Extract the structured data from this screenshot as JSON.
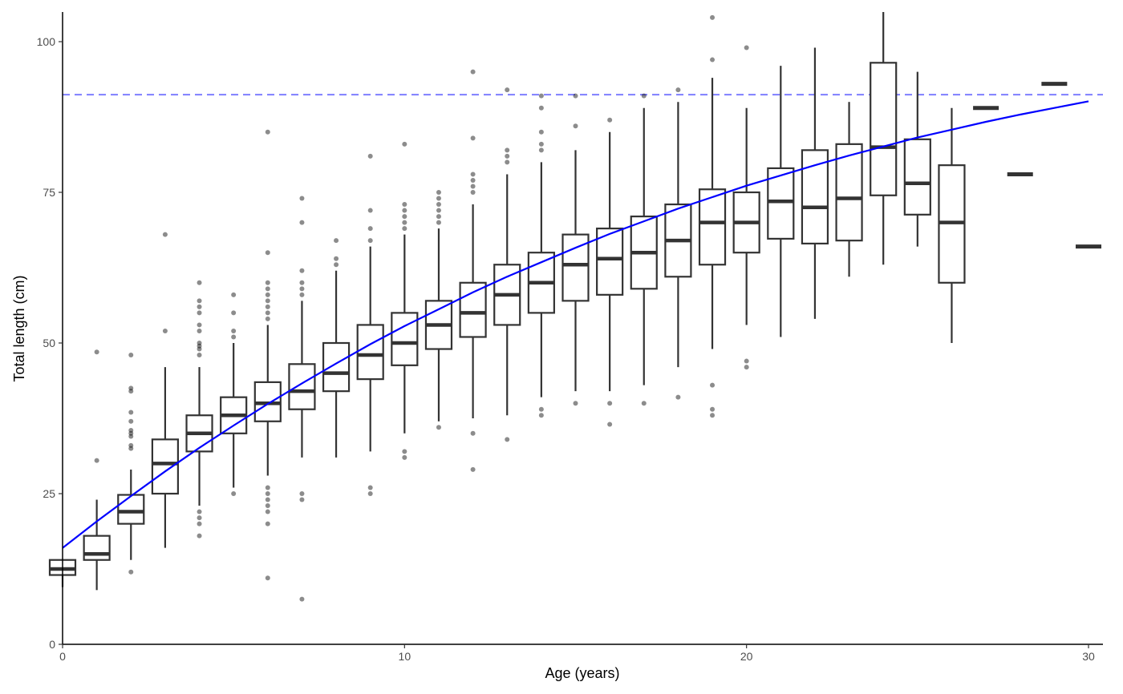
{
  "chart_data": {
    "type": "box",
    "xlabel": "Age (years)",
    "ylabel": "Total length (cm)",
    "xlim": [
      0,
      30
    ],
    "ylim": [
      0,
      105
    ],
    "x_ticks": [
      0,
      10,
      20,
      30
    ],
    "y_ticks": [
      0,
      25,
      50,
      75,
      100
    ],
    "grid": false,
    "reference_line": {
      "y": 91.2,
      "style": "dashed",
      "color": "#7f7fff"
    },
    "fit_curve": {
      "color": "#0000ff",
      "points": [
        [
          0,
          16.0
        ],
        [
          1,
          20.4
        ],
        [
          2,
          24.6
        ],
        [
          3,
          28.7
        ],
        [
          4,
          32.6
        ],
        [
          5,
          36.3
        ],
        [
          6,
          39.9
        ],
        [
          7,
          43.3
        ],
        [
          8,
          46.6
        ],
        [
          9,
          49.8
        ],
        [
          10,
          52.8
        ],
        [
          11,
          55.6
        ],
        [
          12,
          58.4
        ],
        [
          13,
          61.0
        ],
        [
          14,
          63.4
        ],
        [
          15,
          65.8
        ],
        [
          16,
          68.1
        ],
        [
          17,
          70.2
        ],
        [
          18,
          72.3
        ],
        [
          19,
          74.2
        ],
        [
          20,
          76.1
        ],
        [
          21,
          77.8
        ],
        [
          22,
          79.5
        ],
        [
          23,
          81.1
        ],
        [
          24,
          82.6
        ],
        [
          25,
          84.1
        ],
        [
          26,
          85.4
        ],
        [
          27,
          86.7
        ],
        [
          28,
          87.9
        ],
        [
          29,
          89.0
        ],
        [
          30,
          90.1
        ]
      ]
    },
    "boxes": [
      {
        "age": 0,
        "min": 9.5,
        "q1": 11.5,
        "median": 12.5,
        "q3": 14,
        "max": 14,
        "outliers": []
      },
      {
        "age": 1,
        "min": 9,
        "q1": 14,
        "median": 15,
        "q3": 18,
        "max": 24,
        "outliers": [
          30.5,
          48.5
        ]
      },
      {
        "age": 2,
        "min": 14,
        "q1": 20,
        "median": 22,
        "q3": 24.8,
        "max": 29,
        "outliers": [
          12,
          32.5,
          33,
          34.5,
          35,
          35.5,
          37,
          38.5,
          42,
          42.5,
          48
        ]
      },
      {
        "age": 3,
        "min": 16,
        "q1": 25,
        "median": 30,
        "q3": 34,
        "max": 46,
        "outliers": [
          52,
          68
        ]
      },
      {
        "age": 4,
        "min": 23,
        "q1": 32,
        "median": 35,
        "q3": 38,
        "max": 46,
        "outliers": [
          18,
          20,
          21,
          22,
          48,
          49,
          49.5,
          50,
          52,
          53,
          55,
          56,
          57,
          60
        ]
      },
      {
        "age": 5,
        "min": 26,
        "q1": 35,
        "median": 38,
        "q3": 41,
        "max": 50,
        "outliers": [
          25,
          51,
          52,
          55,
          58
        ]
      },
      {
        "age": 6,
        "min": 28,
        "q1": 37,
        "median": 40,
        "q3": 43.5,
        "max": 53,
        "outliers": [
          11,
          20,
          22,
          23,
          24,
          25,
          26,
          54,
          55,
          56,
          57,
          58,
          59,
          60,
          65,
          85
        ]
      },
      {
        "age": 7,
        "min": 31,
        "q1": 39,
        "median": 42,
        "q3": 46.5,
        "max": 57,
        "outliers": [
          7.5,
          24,
          25,
          58,
          59,
          60,
          62,
          70,
          74
        ]
      },
      {
        "age": 8,
        "min": 31,
        "q1": 42,
        "median": 45,
        "q3": 50,
        "max": 62,
        "outliers": [
          63,
          64,
          67
        ]
      },
      {
        "age": 9,
        "min": 32,
        "q1": 44,
        "median": 48,
        "q3": 53,
        "max": 66,
        "outliers": [
          25,
          26,
          67,
          69,
          72,
          81
        ]
      },
      {
        "age": 10,
        "min": 35,
        "q1": 46.3,
        "median": 50,
        "q3": 55,
        "max": 68,
        "outliers": [
          31,
          32,
          69,
          70,
          71,
          72,
          73,
          83
        ]
      },
      {
        "age": 11,
        "min": 37,
        "q1": 49,
        "median": 53,
        "q3": 57,
        "max": 69,
        "outliers": [
          36,
          70,
          71,
          72,
          73,
          74,
          75
        ]
      },
      {
        "age": 12,
        "min": 37.5,
        "q1": 51,
        "median": 55,
        "q3": 60,
        "max": 73,
        "outliers": [
          29,
          35,
          75,
          76,
          77,
          78,
          84,
          95
        ]
      },
      {
        "age": 13,
        "min": 38,
        "q1": 53,
        "median": 58,
        "q3": 63,
        "max": 78,
        "outliers": [
          34,
          80,
          81,
          82,
          92
        ]
      },
      {
        "age": 14,
        "min": 41,
        "q1": 55,
        "median": 60,
        "q3": 65,
        "max": 80,
        "outliers": [
          38,
          39,
          82,
          83,
          85,
          89,
          91
        ]
      },
      {
        "age": 15,
        "min": 42,
        "q1": 57,
        "median": 63,
        "q3": 68,
        "max": 82,
        "outliers": [
          40,
          86,
          91
        ]
      },
      {
        "age": 16,
        "min": 42,
        "q1": 58,
        "median": 64,
        "q3": 69,
        "max": 85,
        "outliers": [
          36.5,
          40,
          87
        ]
      },
      {
        "age": 17,
        "min": 43,
        "q1": 59,
        "median": 65,
        "q3": 71,
        "max": 89,
        "outliers": [
          40,
          91
        ]
      },
      {
        "age": 18,
        "min": 46,
        "q1": 61,
        "median": 67,
        "q3": 73,
        "max": 90,
        "outliers": [
          41,
          92
        ]
      },
      {
        "age": 19,
        "min": 49,
        "q1": 63,
        "median": 70,
        "q3": 75.5,
        "max": 94,
        "outliers": [
          38,
          39,
          43,
          97,
          104
        ]
      },
      {
        "age": 20,
        "min": 53,
        "q1": 65,
        "median": 70,
        "q3": 75,
        "max": 89,
        "outliers": [
          46,
          47,
          99
        ]
      },
      {
        "age": 21,
        "min": 51,
        "q1": 67.3,
        "median": 73.5,
        "q3": 79,
        "max": 96,
        "outliers": []
      },
      {
        "age": 22,
        "min": 54,
        "q1": 66.5,
        "median": 72.5,
        "q3": 82,
        "max": 99,
        "outliers": []
      },
      {
        "age": 23,
        "min": 61,
        "q1": 67,
        "median": 74,
        "q3": 83,
        "max": 90,
        "outliers": []
      },
      {
        "age": 24,
        "min": 63,
        "q1": 74.5,
        "median": 82.5,
        "q3": 96.5,
        "max": 105,
        "outliers": []
      },
      {
        "age": 25,
        "min": 66,
        "q1": 71.3,
        "median": 76.5,
        "q3": 83.8,
        "max": 95,
        "outliers": []
      },
      {
        "age": 26,
        "min": 50,
        "q1": 60,
        "median": 70,
        "q3": 79.5,
        "max": 89,
        "outliers": []
      },
      {
        "age": 27,
        "min": 89,
        "q1": 89,
        "median": 89,
        "q3": 89,
        "max": 89,
        "outliers": []
      },
      {
        "age": 28,
        "min": 78,
        "q1": 78,
        "median": 78,
        "q3": 78,
        "max": 78,
        "outliers": []
      },
      {
        "age": 29,
        "min": 93,
        "q1": 93,
        "median": 93,
        "q3": 93,
        "max": 93,
        "outliers": []
      },
      {
        "age": 30,
        "min": 66,
        "q1": 66,
        "median": 66,
        "q3": 66,
        "max": 66,
        "outliers": []
      }
    ]
  }
}
